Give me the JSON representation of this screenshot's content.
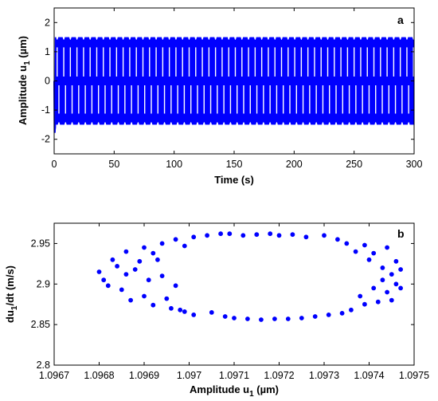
{
  "chart_data": [
    {
      "type": "line",
      "panel": "a",
      "xlabel": "Time (s)",
      "ylabel": "Amplitude u1 (µm)",
      "xlim": [
        0,
        300
      ],
      "ylim": [
        -2.5,
        2.5
      ],
      "xticks": [
        0,
        50,
        100,
        150,
        200,
        250,
        300
      ],
      "yticks": [
        -2,
        -1,
        0,
        1,
        2
      ],
      "color": "#0000ff",
      "signal": {
        "description_values": "oscillating displacement signal",
        "steady_amplitude": 1.5,
        "initial_min": -1.78,
        "period_s": 5.5,
        "inner_envelope_upper": 1.15,
        "inner_envelope_lower": -1.12
      }
    },
    {
      "type": "scatter",
      "panel": "b",
      "xlabel": "Amplitude u1 (µm)",
      "ylabel": "du1/dt (m/s)",
      "xlim": [
        1.0967,
        1.0975
      ],
      "ylim": [
        2.8,
        2.975
      ],
      "xticks": [
        "1.0967",
        "1.0968",
        "1.0969",
        "1.097",
        "1.0971",
        "1.0972",
        "1.0973",
        "1.0974",
        "1.0975"
      ],
      "yticks": [
        "2.8",
        "2.85",
        "2.9",
        "2.95"
      ],
      "color": "#0000ff",
      "points": [
        [
          1.0968,
          2.915
        ],
        [
          1.09681,
          2.905
        ],
        [
          1.09682,
          2.898
        ],
        [
          1.09683,
          2.93
        ],
        [
          1.09684,
          2.922
        ],
        [
          1.09685,
          2.893
        ],
        [
          1.09686,
          2.94
        ],
        [
          1.09686,
          2.912
        ],
        [
          1.09687,
          2.88
        ],
        [
          1.09688,
          2.918
        ],
        [
          1.09689,
          2.928
        ],
        [
          1.0969,
          2.945
        ],
        [
          1.0969,
          2.885
        ],
        [
          1.09691,
          2.905
        ],
        [
          1.09692,
          2.874
        ],
        [
          1.09692,
          2.938
        ],
        [
          1.09693,
          2.93
        ],
        [
          1.09694,
          2.95
        ],
        [
          1.09694,
          2.91
        ],
        [
          1.09695,
          2.882
        ],
        [
          1.09696,
          2.87
        ],
        [
          1.09697,
          2.955
        ],
        [
          1.09697,
          2.898
        ],
        [
          1.09698,
          2.868
        ],
        [
          1.09699,
          2.866
        ],
        [
          1.09699,
          2.947
        ],
        [
          1.09701,
          2.958
        ],
        [
          1.09701,
          2.862
        ],
        [
          1.09704,
          2.96
        ],
        [
          1.09705,
          2.865
        ],
        [
          1.09707,
          2.962
        ],
        [
          1.09708,
          2.86
        ],
        [
          1.09709,
          2.962
        ],
        [
          1.0971,
          2.858
        ],
        [
          1.09712,
          2.96
        ],
        [
          1.09713,
          2.857
        ],
        [
          1.09715,
          2.961
        ],
        [
          1.09716,
          2.856
        ],
        [
          1.09718,
          2.962
        ],
        [
          1.09719,
          2.857
        ],
        [
          1.0972,
          2.96
        ],
        [
          1.09722,
          2.857
        ],
        [
          1.09723,
          2.961
        ],
        [
          1.09725,
          2.858
        ],
        [
          1.09726,
          2.958
        ],
        [
          1.09728,
          2.86
        ],
        [
          1.0973,
          2.96
        ],
        [
          1.09731,
          2.862
        ],
        [
          1.09733,
          2.955
        ],
        [
          1.09734,
          2.864
        ],
        [
          1.09735,
          2.95
        ],
        [
          1.09736,
          2.868
        ],
        [
          1.09737,
          2.94
        ],
        [
          1.09738,
          2.885
        ],
        [
          1.09739,
          2.948
        ],
        [
          1.09739,
          2.875
        ],
        [
          1.0974,
          2.93
        ],
        [
          1.09741,
          2.895
        ],
        [
          1.09741,
          2.938
        ],
        [
          1.09742,
          2.878
        ],
        [
          1.09743,
          2.92
        ],
        [
          1.09743,
          2.905
        ],
        [
          1.09744,
          2.945
        ],
        [
          1.09744,
          2.89
        ],
        [
          1.09745,
          2.912
        ],
        [
          1.09745,
          2.88
        ],
        [
          1.09746,
          2.928
        ],
        [
          1.09746,
          2.9
        ],
        [
          1.09747,
          2.918
        ],
        [
          1.09747,
          2.895
        ]
      ]
    }
  ],
  "panels": {
    "a": {
      "letter": "a",
      "xlabel": "Time (s)",
      "ylabel_main": "Amplitude u",
      "ylabel_sub": "1",
      "ylabel_unit": " (µm)"
    },
    "b": {
      "letter": "b",
      "xlabel_main": "Amplitude u",
      "xlabel_sub": "1",
      "xlabel_unit": " (µm)",
      "ylabel_main": "du",
      "ylabel_sub": "1",
      "ylabel_unit": "/dt (m/s)"
    }
  }
}
